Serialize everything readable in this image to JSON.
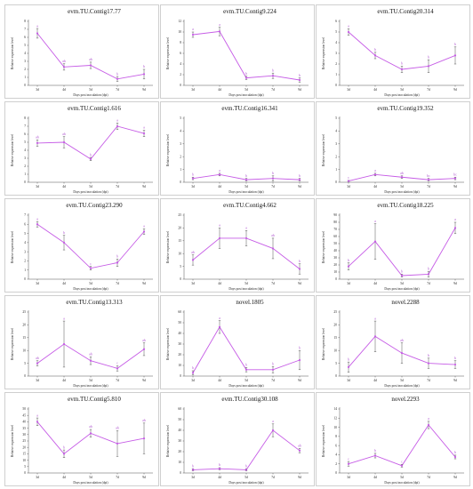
{
  "chart_data": [
    {
      "type": "line",
      "title": "evm.TU.Contig17.77",
      "xlabel": "Days post inoculation (dpi)",
      "ylabel": "Relative expression level",
      "categories": [
        "3d",
        "4d",
        "5d",
        "7d",
        "9d"
      ],
      "ylim": [
        0,
        8
      ],
      "yticks": [
        0,
        1,
        2,
        3,
        4,
        5,
        6,
        7,
        8
      ],
      "values": [
        6.5,
        2.3,
        2.5,
        0.8,
        1.4
      ],
      "errors": [
        0.6,
        0.4,
        0.4,
        0.3,
        0.6
      ],
      "labels": [
        "a",
        "ab",
        "ab",
        "b",
        "b"
      ]
    },
    {
      "type": "line",
      "title": "evm.TU.Contig9.224",
      "xlabel": "Days post inoculation (dpi)",
      "ylabel": "Relative expression level",
      "categories": [
        "3d",
        "4d",
        "5d",
        "7d",
        "9d"
      ],
      "ylim": [
        0,
        12
      ],
      "yticks": [
        0,
        2,
        4,
        6,
        8,
        10,
        12
      ],
      "values": [
        9.5,
        10.1,
        1.4,
        1.8,
        1.0
      ],
      "errors": [
        0.5,
        0.8,
        0.3,
        0.5,
        0.4
      ],
      "labels": [
        "a",
        "a",
        "b",
        "b",
        "b"
      ]
    },
    {
      "type": "line",
      "title": "evm.TU.Contig20.314",
      "xlabel": "Days post inoculation (dpi)",
      "ylabel": "Relative expression level",
      "categories": [
        "3d",
        "4d",
        "5d",
        "7d",
        "9d"
      ],
      "ylim": [
        0,
        6
      ],
      "yticks": [
        0,
        1,
        2,
        3,
        4,
        5,
        6
      ],
      "values": [
        5.0,
        2.8,
        1.5,
        1.8,
        2.8
      ],
      "errors": [
        0.3,
        0.3,
        0.3,
        0.6,
        0.8
      ],
      "labels": [
        "a",
        "b",
        "b",
        "b",
        "b"
      ]
    },
    {
      "type": "line",
      "title": "evm.TU.Contig1.616",
      "xlabel": "Days post inoculation (dpi)",
      "ylabel": "Relative expression level",
      "categories": [
        "3d",
        "4d",
        "5d",
        "7d",
        "9d"
      ],
      "ylim": [
        0,
        8
      ],
      "yticks": [
        0,
        1,
        2,
        3,
        4,
        5,
        6,
        7,
        8
      ],
      "values": [
        4.9,
        5.0,
        2.9,
        7.0,
        6.1
      ],
      "errors": [
        0.4,
        0.7,
        0.2,
        0.4,
        0.4
      ],
      "labels": [
        "ab",
        "ab",
        "b",
        "a",
        "a"
      ]
    },
    {
      "type": "line",
      "title": "evm.TU.Contig16.341",
      "xlabel": "Days post inoculation (dpi)",
      "ylabel": "Relative expression level",
      "categories": [
        "3d",
        "4d",
        "5d",
        "7d",
        "9d"
      ],
      "ylim": [
        0,
        5
      ],
      "yticks": [
        0,
        1,
        2,
        3,
        4,
        5
      ],
      "values": [
        0.3,
        0.6,
        0.2,
        0.3,
        0.2
      ],
      "errors": [
        0.1,
        0.1,
        0.1,
        0.2,
        0.1
      ],
      "labels": [
        "b",
        "a",
        "b",
        "b",
        "b"
      ]
    },
    {
      "type": "line",
      "title": "evm.TU.Contig19.352",
      "xlabel": "Days post inoculation (dpi)",
      "ylabel": "Relative expression level",
      "categories": [
        "3d",
        "4d",
        "5d",
        "7d",
        "9d"
      ],
      "ylim": [
        0,
        5
      ],
      "yticks": [
        0,
        1,
        2,
        3,
        4,
        5
      ],
      "values": [
        0.1,
        0.6,
        0.4,
        0.2,
        0.3
      ],
      "errors": [
        0.05,
        0.1,
        0.1,
        0.1,
        0.1
      ],
      "labels": [
        "c",
        "a",
        "ab",
        "bc",
        "bc"
      ]
    },
    {
      "type": "line",
      "title": "evm.TU.Contig23.290",
      "xlabel": "Days post inoculation (dpi)",
      "ylabel": "Relative expression level",
      "categories": [
        "3d",
        "4d",
        "5d",
        "7d",
        "9d"
      ],
      "ylim": [
        0,
        7
      ],
      "yticks": [
        0,
        1,
        2,
        3,
        4,
        5,
        6,
        7
      ],
      "values": [
        6.0,
        4.0,
        1.2,
        1.8,
        5.2
      ],
      "errors": [
        0.3,
        0.8,
        0.2,
        0.4,
        0.3
      ],
      "labels": [
        "a",
        "b",
        "c",
        "b",
        "a"
      ]
    },
    {
      "type": "line",
      "title": "evm.TU.Contig4.662",
      "xlabel": "Days post inoculation (dpi)",
      "ylabel": "Relative expression level",
      "categories": [
        "3d",
        "4d",
        "5d",
        "7d",
        "9d"
      ],
      "ylim": [
        0,
        25
      ],
      "yticks": [
        0,
        5,
        10,
        15,
        20,
        25
      ],
      "values": [
        7.5,
        16.0,
        16.0,
        12.0,
        4.0
      ],
      "errors": [
        2.0,
        4.0,
        3.0,
        4.0,
        2.0
      ],
      "labels": [
        "ab",
        "a",
        "a",
        "ab",
        "b"
      ]
    },
    {
      "type": "line",
      "title": "evm.TU.Contig18.225",
      "xlabel": "Days post inoculation (dpi)",
      "ylabel": "Relative expression level",
      "categories": [
        "3d",
        "4d",
        "5d",
        "7d",
        "9d"
      ],
      "ylim": [
        0,
        90
      ],
      "yticks": [
        0,
        10,
        20,
        30,
        40,
        50,
        60,
        70,
        80,
        90
      ],
      "values": [
        18,
        53,
        5,
        7,
        72
      ],
      "errors": [
        5,
        25,
        2,
        4,
        8
      ],
      "labels": [
        "b",
        "a",
        "b",
        "b",
        "a"
      ]
    },
    {
      "type": "line",
      "title": "evm.TU.Contig13.313",
      "xlabel": "Days post inoculation (dpi)",
      "ylabel": "Relative expression level",
      "categories": [
        "3d",
        "4d",
        "5d",
        "7d",
        "9d"
      ],
      "ylim": [
        0,
        25
      ],
      "yticks": [
        0,
        5,
        10,
        15,
        20,
        25
      ],
      "values": [
        5.0,
        12.5,
        6.0,
        3.0,
        10.5
      ],
      "errors": [
        1.0,
        9.0,
        1.5,
        1.0,
        2.5
      ],
      "labels": [
        "ab",
        "a",
        "ab",
        "c",
        "ab"
      ]
    },
    {
      "type": "line",
      "title": "novel.1805",
      "xlabel": "Days post inoculation (dpi)",
      "ylabel": "Relative expression level",
      "categories": [
        "3d",
        "4d",
        "5d",
        "7d",
        "9d"
      ],
      "ylim": [
        0,
        60
      ],
      "yticks": [
        0,
        10,
        20,
        30,
        40,
        50,
        60
      ],
      "values": [
        3,
        46,
        6,
        6,
        15
      ],
      "errors": [
        2,
        6,
        2,
        3,
        9
      ],
      "labels": [
        "b",
        "a",
        "b",
        "b",
        "b"
      ]
    },
    {
      "type": "line",
      "title": "novel.2288",
      "xlabel": "Days post inoculation (dpi)",
      "ylabel": "Relative expression level",
      "categories": [
        "3d",
        "4d",
        "5d",
        "7d",
        "9d"
      ],
      "ylim": [
        0,
        25
      ],
      "yticks": [
        0,
        5,
        10,
        15,
        20,
        25
      ],
      "values": [
        3.5,
        15.5,
        9.0,
        5.0,
        4.5
      ],
      "errors": [
        2.0,
        6.0,
        4.0,
        2.0,
        1.5
      ],
      "labels": [
        "b",
        "a",
        "ab",
        "b",
        "b"
      ]
    },
    {
      "type": "line",
      "title": "evm.TU.Contig5.810",
      "xlabel": "Days post inoculation (dpi)",
      "ylabel": "Relative expression level",
      "categories": [
        "3d",
        "4d",
        "5d",
        "7d",
        "9d"
      ],
      "ylim": [
        0,
        50
      ],
      "yticks": [
        0,
        5,
        10,
        15,
        20,
        25,
        30,
        35,
        40,
        45,
        50
      ],
      "values": [
        40,
        15,
        31,
        23,
        27
      ],
      "errors": [
        3,
        3,
        3,
        10,
        12
      ],
      "labels": [
        "a",
        "b",
        "ab",
        "ab",
        "ab"
      ]
    },
    {
      "type": "line",
      "title": "evm.TU.Contig30.108",
      "xlabel": "Days post inoculation (dpi)",
      "ylabel": "Relative expression level",
      "categories": [
        "3d",
        "4d",
        "5d",
        "7d",
        "9d"
      ],
      "ylim": [
        0,
        60
      ],
      "yticks": [
        0,
        10,
        20,
        30,
        40,
        50,
        60
      ],
      "values": [
        3,
        4,
        3,
        40,
        21
      ],
      "errors": [
        1,
        1,
        1,
        6,
        2
      ],
      "labels": [
        "b",
        "b",
        "b",
        "a",
        "ab"
      ]
    },
    {
      "type": "line",
      "title": "novel.2293",
      "xlabel": "Days post inoculation (dpi)",
      "ylabel": "Relative expression level",
      "categories": [
        "3d",
        "4d",
        "5d",
        "7d",
        "9d"
      ],
      "ylim": [
        0,
        14
      ],
      "yticks": [
        0,
        2,
        4,
        6,
        8,
        10,
        12,
        14
      ],
      "values": [
        2.0,
        3.8,
        1.6,
        10.5,
        3.5
      ],
      "errors": [
        0.5,
        0.5,
        0.3,
        0.8,
        0.4
      ],
      "labels": [
        "c",
        "b",
        "c",
        "a",
        "b"
      ]
    }
  ],
  "colors": {
    "line": "#c65ce6",
    "label": "#b05ad0",
    "axis": "#555555"
  }
}
